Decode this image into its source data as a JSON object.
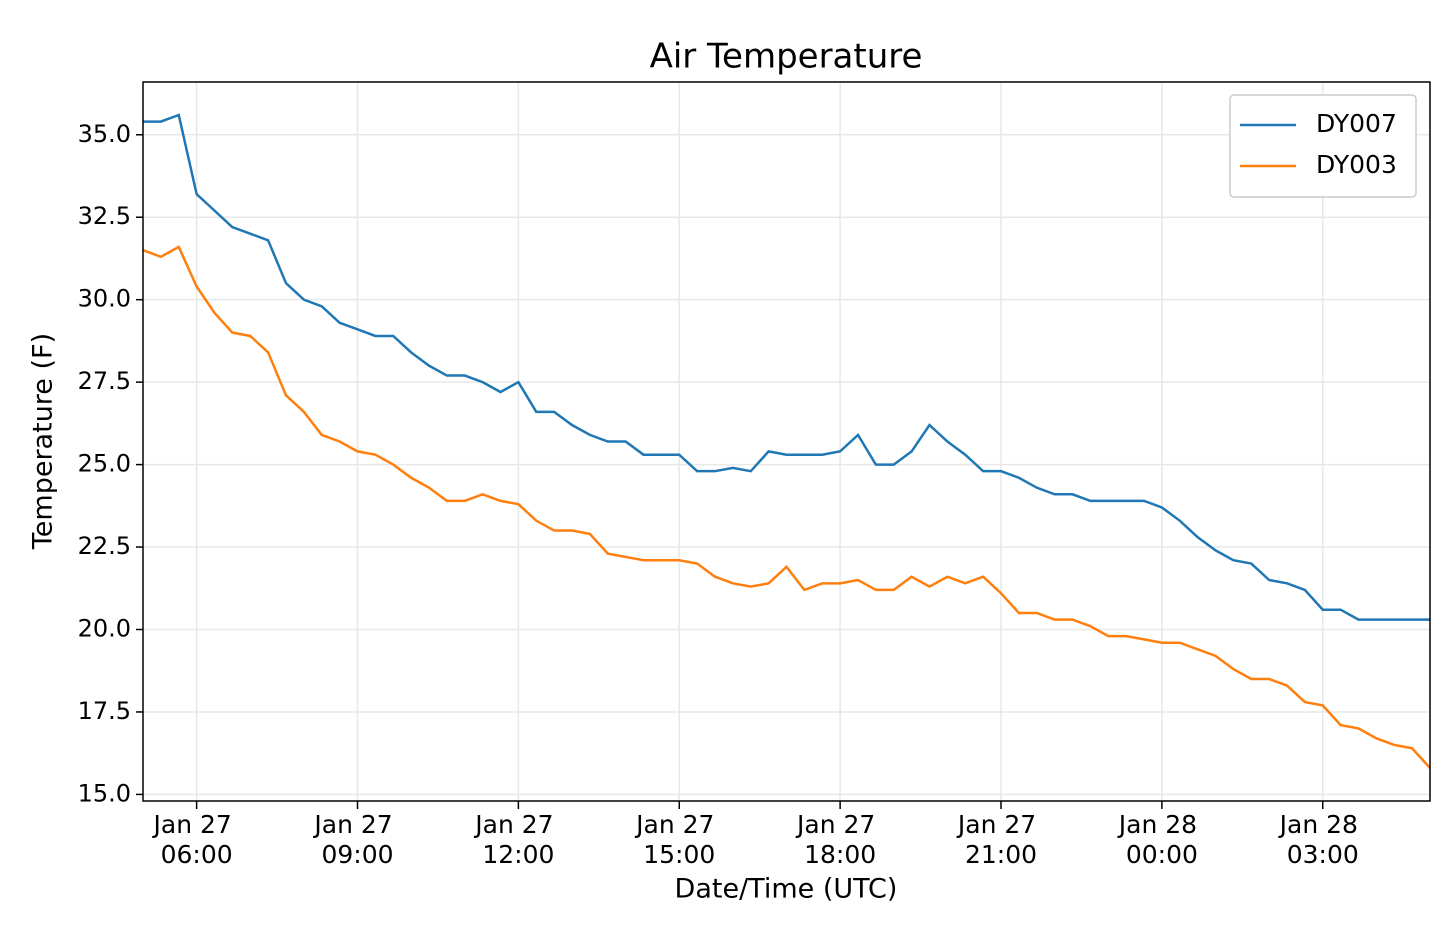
{
  "chart_data": {
    "type": "line",
    "title": "Air Temperature",
    "x_label": "Date/Time (UTC)",
    "y_label": "Temperature (F)",
    "x": [
      "Jan 27 05:00",
      "Jan 27 05:20",
      "Jan 27 05:40",
      "Jan 27 06:00",
      "Jan 27 06:20",
      "Jan 27 06:40",
      "Jan 27 07:00",
      "Jan 27 07:20",
      "Jan 27 07:40",
      "Jan 27 08:00",
      "Jan 27 08:20",
      "Jan 27 08:40",
      "Jan 27 09:00",
      "Jan 27 09:20",
      "Jan 27 09:40",
      "Jan 27 10:00",
      "Jan 27 10:20",
      "Jan 27 10:40",
      "Jan 27 11:00",
      "Jan 27 11:20",
      "Jan 27 11:40",
      "Jan 27 12:00",
      "Jan 27 12:20",
      "Jan 27 12:40",
      "Jan 27 13:00",
      "Jan 27 13:20",
      "Jan 27 13:40",
      "Jan 27 14:00",
      "Jan 27 14:20",
      "Jan 27 14:40",
      "Jan 27 15:00",
      "Jan 27 15:20",
      "Jan 27 15:40",
      "Jan 27 16:00",
      "Jan 27 16:20",
      "Jan 27 16:40",
      "Jan 27 17:00",
      "Jan 27 17:20",
      "Jan 27 17:40",
      "Jan 27 18:00",
      "Jan 27 18:20",
      "Jan 27 18:40",
      "Jan 27 19:00",
      "Jan 27 19:20",
      "Jan 27 19:40",
      "Jan 27 20:00",
      "Jan 27 20:20",
      "Jan 27 20:40",
      "Jan 27 21:00",
      "Jan 27 21:20",
      "Jan 27 21:40",
      "Jan 27 22:00",
      "Jan 27 22:20",
      "Jan 27 22:40",
      "Jan 27 23:00",
      "Jan 27 23:20",
      "Jan 27 23:40",
      "Jan 28 00:00",
      "Jan 28 00:20",
      "Jan 28 00:40",
      "Jan 28 01:00",
      "Jan 28 01:20",
      "Jan 28 01:40",
      "Jan 28 02:00",
      "Jan 28 02:20",
      "Jan 28 02:40",
      "Jan 28 03:00",
      "Jan 28 03:20",
      "Jan 28 03:40",
      "Jan 28 04:00",
      "Jan 28 04:20",
      "Jan 28 04:40",
      "Jan 28 05:00"
    ],
    "series": [
      {
        "name": "DY007",
        "color": "#1f77b4",
        "values": [
          35.4,
          35.4,
          35.6,
          33.2,
          32.7,
          32.2,
          32.0,
          31.8,
          30.5,
          30.0,
          29.8,
          29.3,
          29.1,
          28.9,
          28.9,
          28.4,
          28.0,
          27.7,
          27.7,
          27.5,
          27.2,
          27.5,
          26.6,
          26.6,
          26.2,
          25.9,
          25.7,
          25.7,
          25.3,
          25.3,
          25.3,
          24.8,
          24.8,
          24.9,
          24.8,
          25.4,
          25.3,
          25.3,
          25.3,
          25.4,
          25.9,
          25.0,
          25.0,
          25.4,
          26.2,
          25.7,
          25.3,
          24.8,
          24.8,
          24.6,
          24.3,
          24.1,
          24.1,
          23.9,
          23.9,
          23.9,
          23.9,
          23.7,
          23.3,
          22.8,
          22.4,
          22.1,
          22.0,
          21.5,
          21.4,
          21.2,
          20.6,
          20.6,
          20.3,
          20.3,
          20.3,
          20.3,
          20.3
        ]
      },
      {
        "name": "DY003",
        "color": "#ff7f0e",
        "values": [
          31.5,
          31.3,
          31.6,
          30.4,
          29.6,
          29.0,
          28.9,
          28.4,
          27.1,
          26.6,
          25.9,
          25.7,
          25.4,
          25.3,
          25.0,
          24.6,
          24.3,
          23.9,
          23.9,
          24.1,
          23.9,
          23.8,
          23.3,
          23.0,
          23.0,
          22.9,
          22.3,
          22.2,
          22.1,
          22.1,
          22.1,
          22.0,
          21.6,
          21.4,
          21.3,
          21.4,
          21.9,
          21.2,
          21.4,
          21.4,
          21.5,
          21.2,
          21.2,
          21.6,
          21.3,
          21.6,
          21.4,
          21.6,
          21.1,
          20.5,
          20.5,
          20.3,
          20.3,
          20.1,
          19.8,
          19.8,
          19.7,
          19.6,
          19.6,
          19.4,
          19.2,
          18.8,
          18.5,
          18.5,
          18.3,
          17.8,
          17.7,
          17.1,
          17.0,
          16.7,
          16.5,
          16.4,
          15.8
        ]
      }
    ],
    "xlim": [
      "Jan 27 05:00",
      "Jan 28 05:00"
    ],
    "xticks": [
      "Jan 27 06:00",
      "Jan 27 09:00",
      "Jan 27 12:00",
      "Jan 27 15:00",
      "Jan 27 18:00",
      "Jan 27 21:00",
      "Jan 28 00:00",
      "Jan 28 03:00"
    ],
    "ylim": [
      14.8,
      36.6
    ],
    "yticks": [
      {
        "value": 15,
        "label": "15.0"
      },
      17.5,
      {
        "value": 20,
        "label": "20.0"
      },
      22.5,
      {
        "value": 25,
        "label": "25.0"
      },
      27.5,
      {
        "value": 30,
        "label": "30.0"
      },
      32.5,
      {
        "value": 35,
        "label": "35.0"
      }
    ],
    "grid": true,
    "legend": "upper right"
  }
}
